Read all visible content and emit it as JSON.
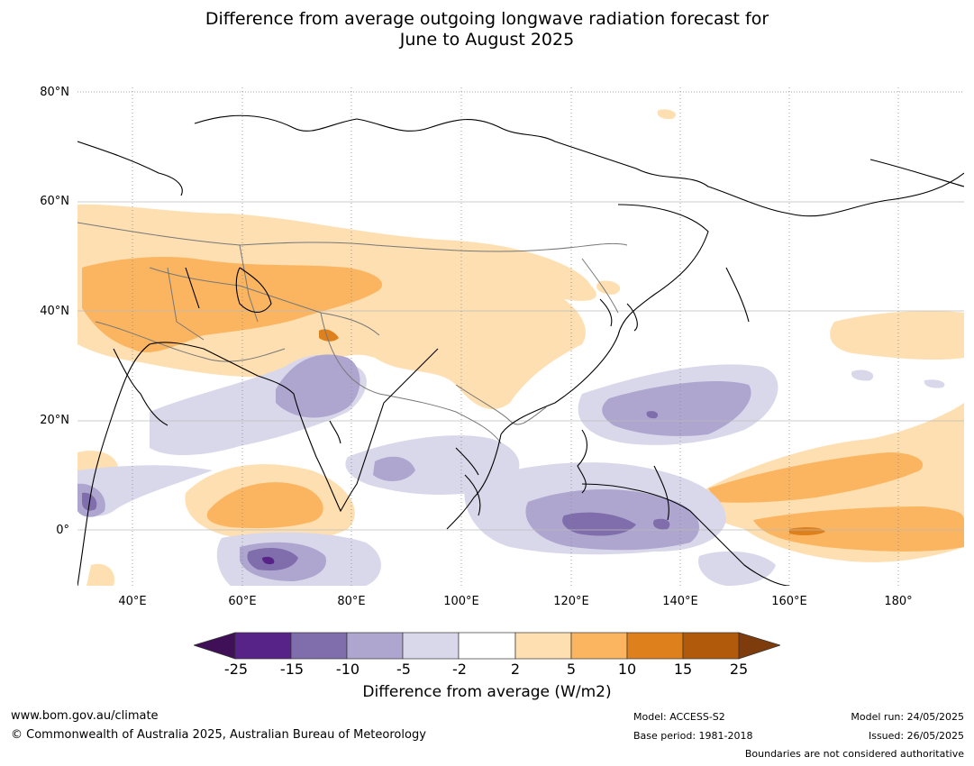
{
  "title_line1": "Difference from average outgoing longwave radiation forecast for",
  "title_line2": "June to August 2025",
  "lat_labels": [
    "80°N",
    "60°N",
    "40°N",
    "20°N",
    "0°"
  ],
  "lon_labels": [
    "40°E",
    "60°E",
    "80°E",
    "100°E",
    "120°E",
    "140°E",
    "160°E",
    "180°"
  ],
  "colorbar": {
    "ticks": [
      "-25",
      "-15",
      "-10",
      "-5",
      "-2",
      "2",
      "5",
      "10",
      "15",
      "25"
    ],
    "colors": [
      "#3f0f57",
      "#572389",
      "#7f6eab",
      "#aea6cf",
      "#d9d8eb",
      "#ffffff",
      "#fedfb1",
      "#fbb560",
      "#de801c",
      "#b15a0c",
      "#7e3c0d"
    ],
    "label": "Difference from average (W/m2)"
  },
  "footer": {
    "website": "www.bom.gov.au/climate",
    "copyright": "© Commonwealth of Australia 2025, Australian Bureau of Meteorology",
    "model": "Model: ACCESS-S2",
    "base_period": "Base period: 1981-2018",
    "model_run": "Model run: 24/05/2025",
    "issued": "Issued: 26/05/2025",
    "disclaimer": "Boundaries are not considered authoritative"
  }
}
